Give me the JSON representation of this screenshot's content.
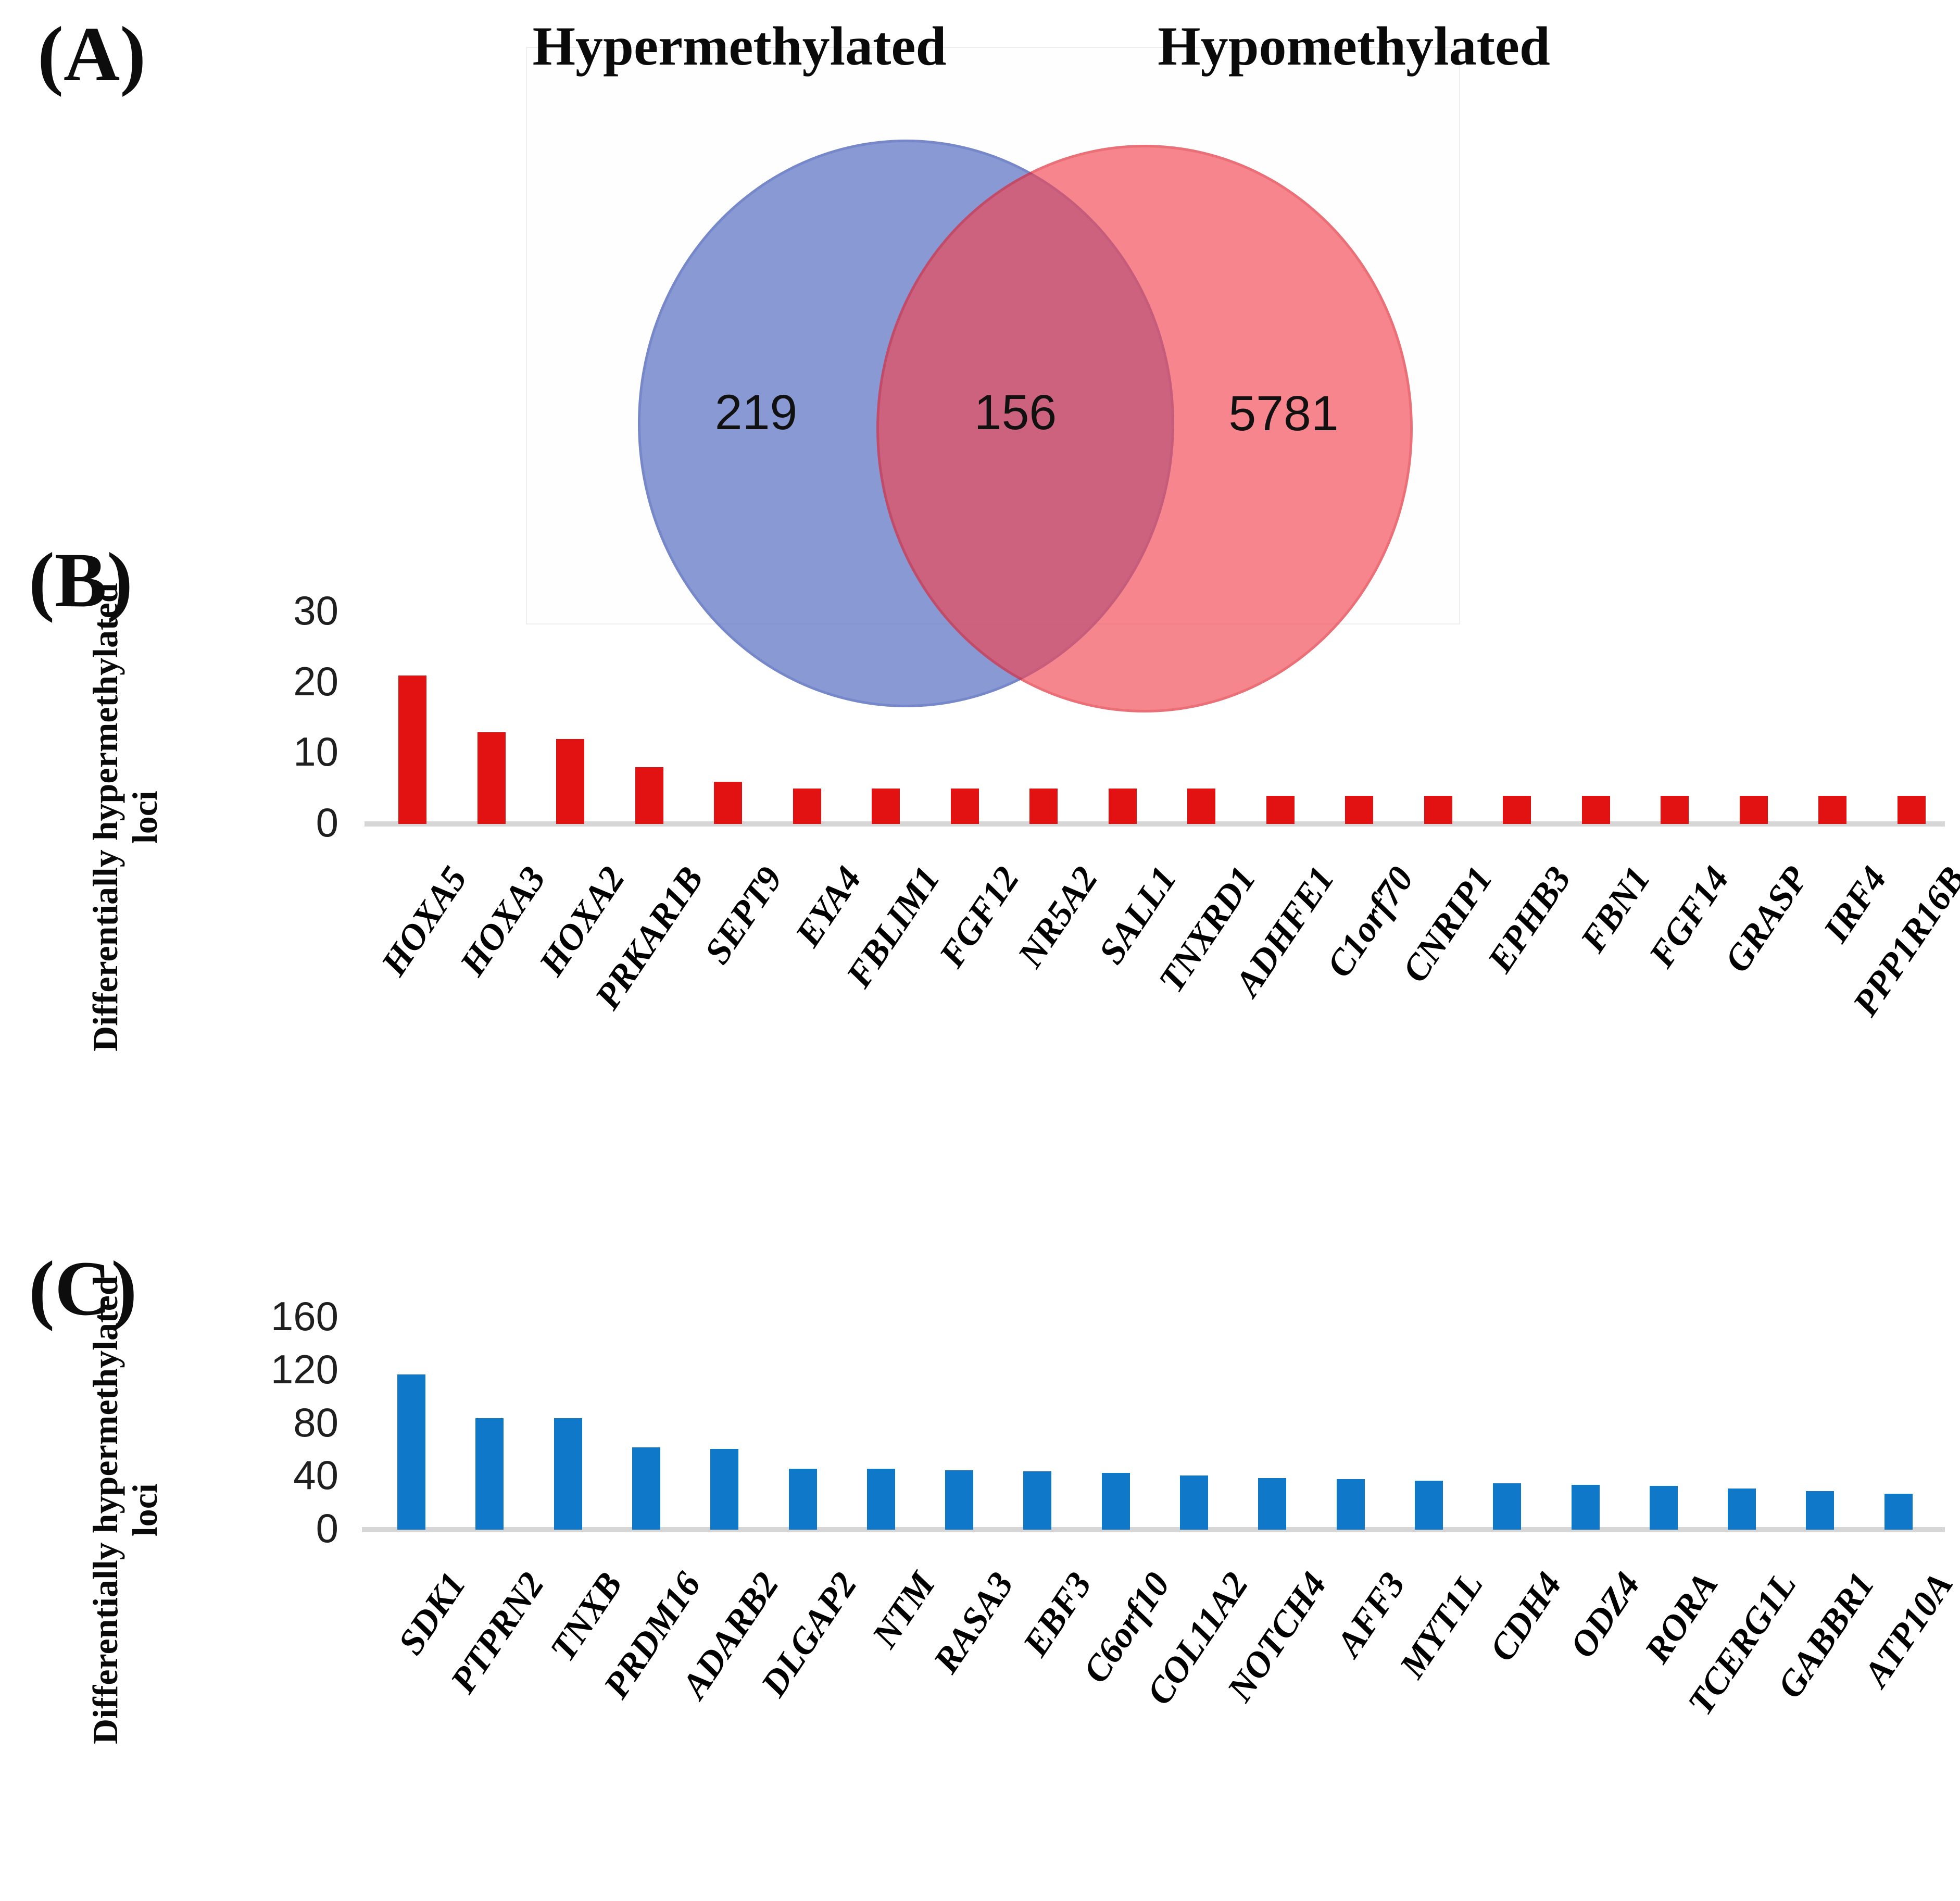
{
  "panels": {
    "a": {
      "label": "(A)",
      "left_title": "Hypermethylated",
      "right_title": "Hypomethylated",
      "left_count": "219",
      "overlap_count": "156",
      "right_count": "5781",
      "left_fill": "#4b64be",
      "left_border": "#2f49af",
      "right_fill": "#f24652",
      "right_border": "#e02330"
    },
    "b": {
      "label": "(B)",
      "ylabel_line1": "Differentially hypermethylated",
      "ylabel_line2": "loci"
    },
    "c": {
      "label": "(C)",
      "ylabel_line1": "Differentially hypermethylated",
      "ylabel_line2": "loci"
    }
  },
  "chart_data": [
    {
      "type": "venn",
      "sets": [
        {
          "label": "Hypermethylated",
          "unique": 219
        },
        {
          "label": "Hypomethylated",
          "unique": 5781
        }
      ],
      "overlap": 156
    },
    {
      "type": "bar",
      "title": "",
      "xlabel": "",
      "ylabel": "Differentially hypermethylated loci",
      "categories": [
        "HOXA5",
        "HOXA3",
        "HOXA2",
        "PRKAR1B",
        "SEPT9",
        "EYA4",
        "FBLIM1",
        "FGF12",
        "NR5A2",
        "SALL1",
        "TNXRD1",
        "ADHFE1",
        "C1orf70",
        "CNRIP1",
        "EPHB3",
        "FBN1",
        "FGF14",
        "GRASP",
        "IRF4",
        "PPP1R16B"
      ],
      "values": [
        21,
        13,
        12,
        8,
        6,
        5,
        5,
        5,
        5,
        5,
        5,
        4,
        4,
        4,
        4,
        4,
        4,
        4,
        4,
        4
      ],
      "ylim": [
        0,
        30
      ],
      "yticks": [
        0,
        10,
        20,
        30
      ],
      "bar_color": "#e31212",
      "grid": false,
      "legend": false
    },
    {
      "type": "bar",
      "title": "",
      "xlabel": "",
      "ylabel": "Differentially hypermethylated loci",
      "categories": [
        "SDK1",
        "PTPRN2",
        "TNXB",
        "PRDM16",
        "ADARB2",
        "DLGAP2",
        "NTM",
        "RASA3",
        "EBF3",
        "C6orf10",
        "COL11A2",
        "NOTCH4",
        "AFF3",
        "MYT1L",
        "CDH4",
        "ODZ4",
        "RORA",
        "TCERG1L",
        "GABBR1",
        "ATP10A"
      ],
      "values": [
        117,
        84,
        84,
        62,
        61,
        46,
        46,
        45,
        44,
        43,
        41,
        39,
        38,
        37,
        35,
        34,
        33,
        31,
        29,
        27
      ],
      "ylim": [
        0,
        160
      ],
      "yticks": [
        0,
        40,
        80,
        120,
        160
      ],
      "bar_color": "#0f78c8",
      "grid": false,
      "legend": false
    }
  ]
}
